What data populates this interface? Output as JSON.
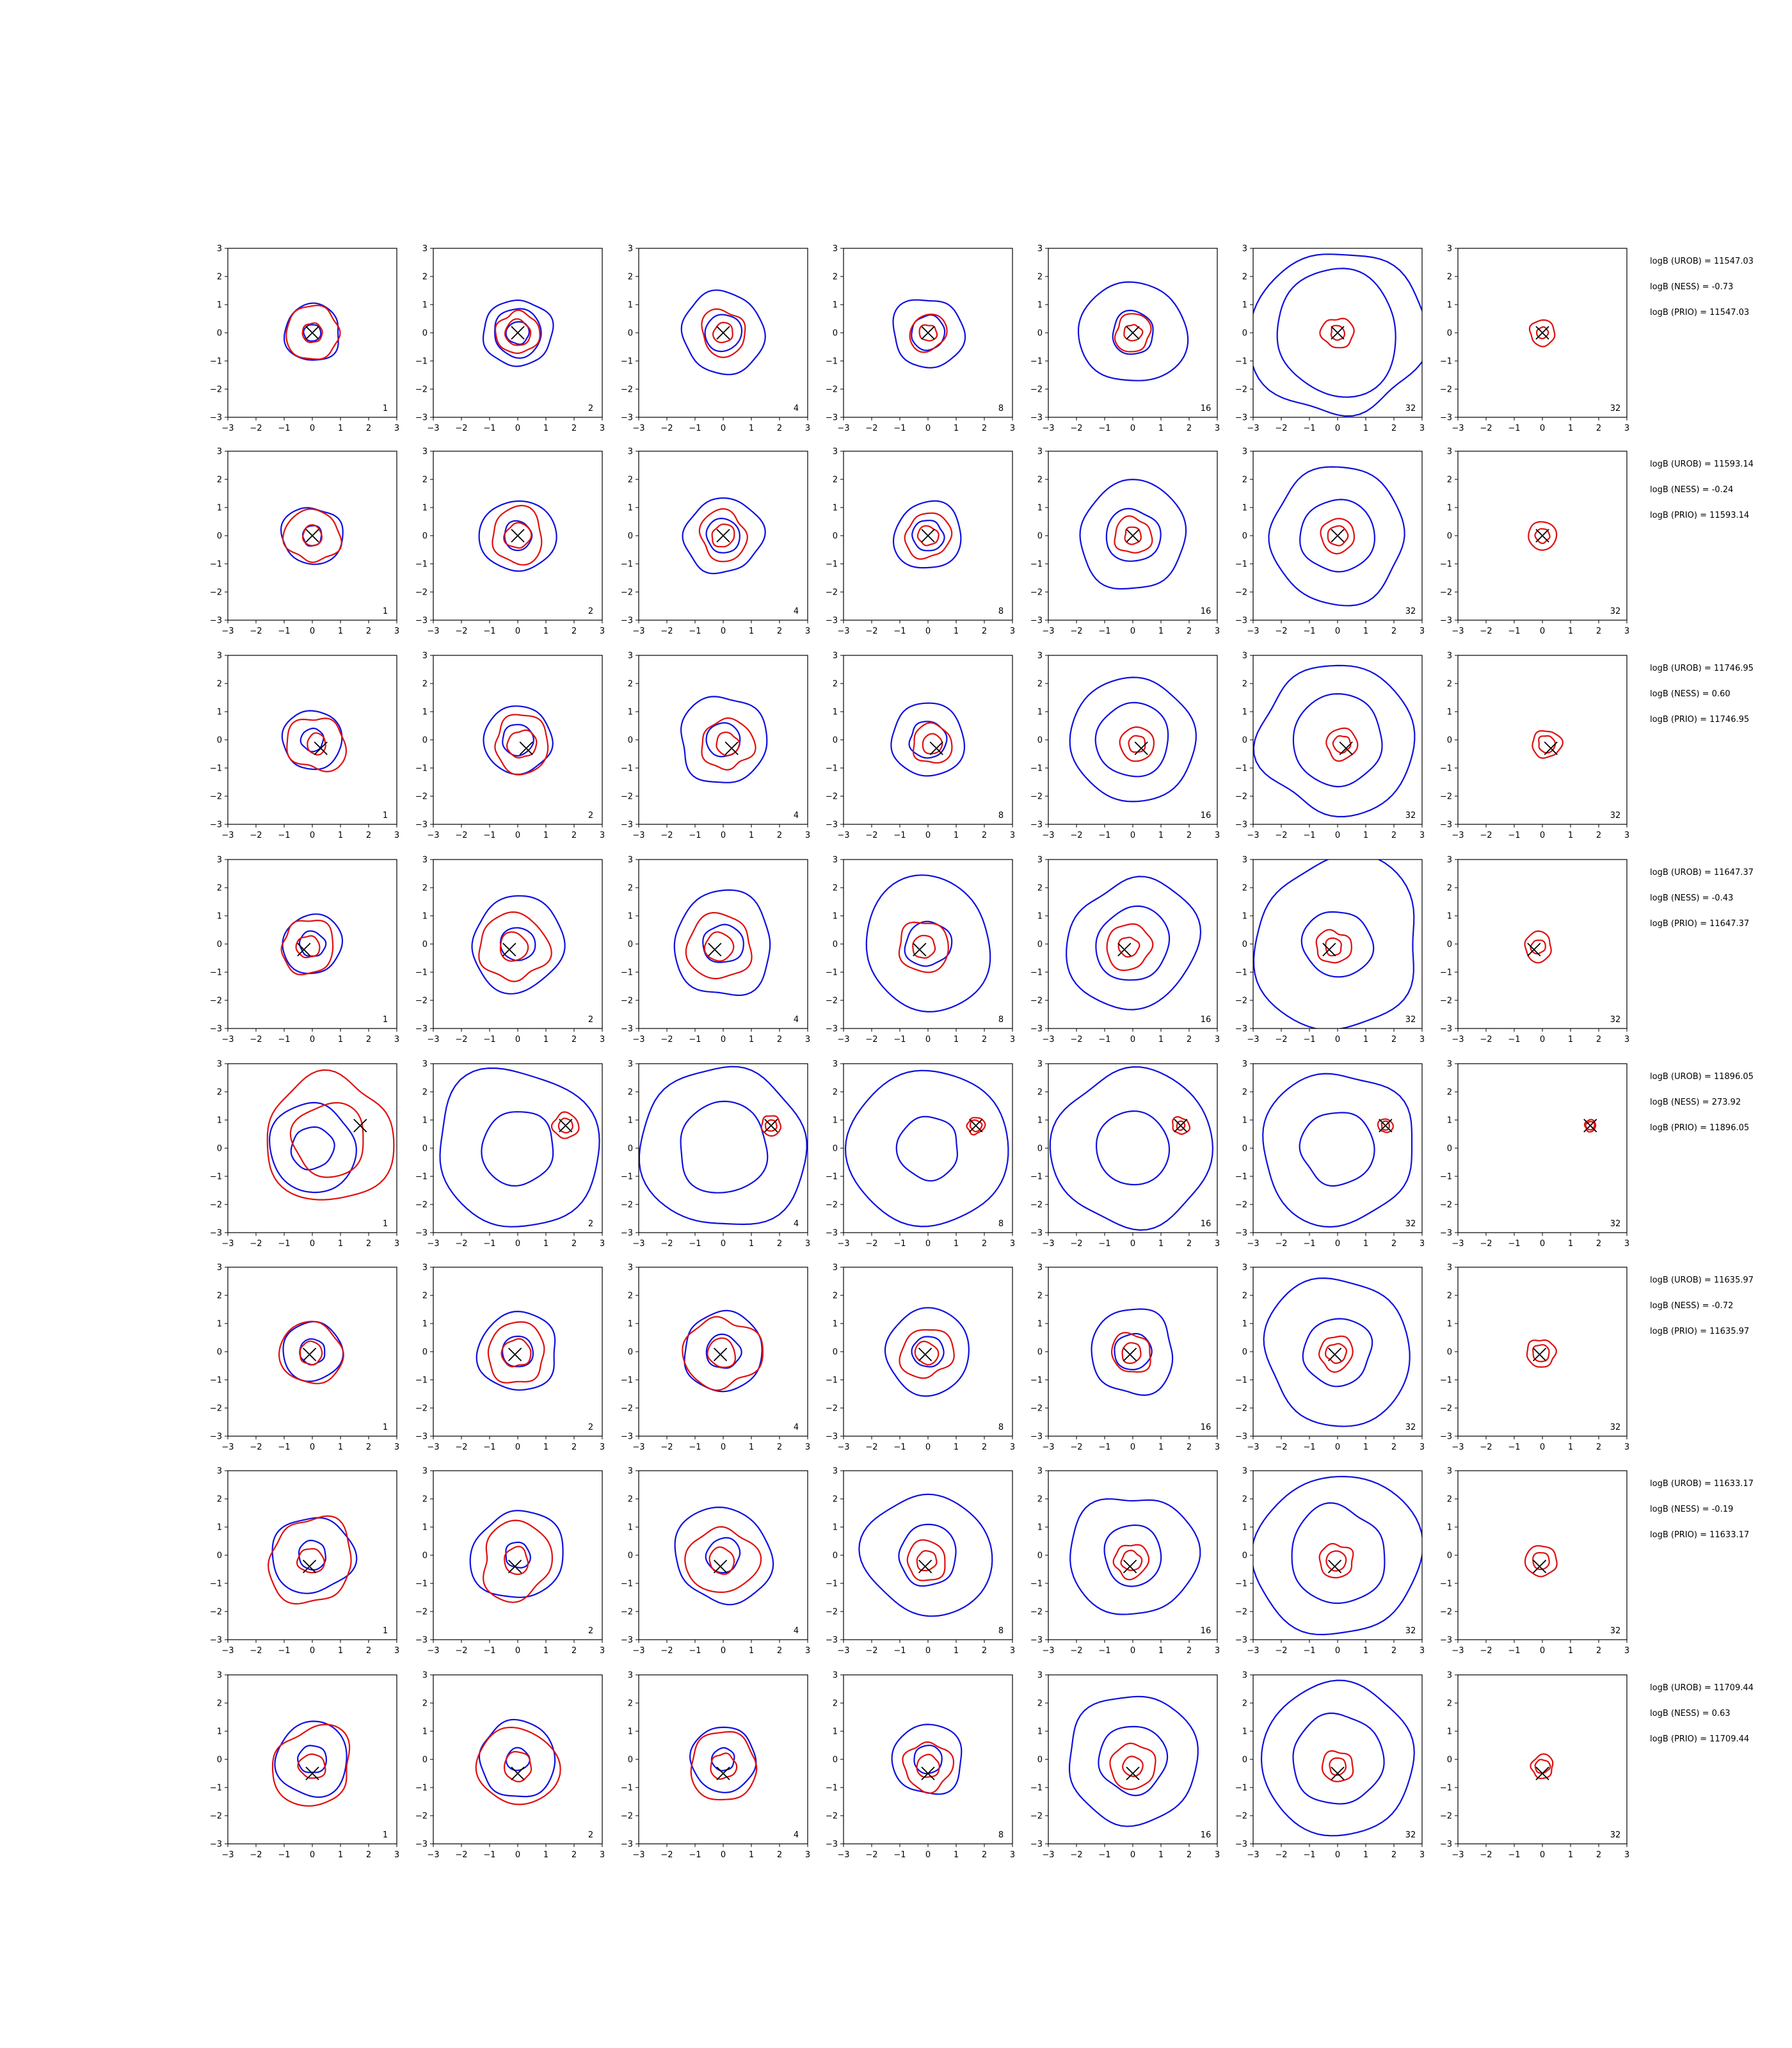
{
  "chart_data": {
    "type": "contour",
    "layout": {
      "rows": 8,
      "cols": 7
    },
    "xlim": [
      -3,
      3
    ],
    "ylim": [
      -3,
      3
    ],
    "ticks": [
      -3,
      -2,
      -1,
      0,
      1,
      2,
      3
    ],
    "tick_labels": [
      "−3",
      "−2",
      "−1",
      "0",
      "1",
      "2",
      "3"
    ],
    "grid": false,
    "legend": "none",
    "col_labels": [
      "1",
      "2",
      "4",
      "8",
      "16",
      "32",
      "32"
    ],
    "colors": {
      "blue": "#1010e0",
      "red": "#e01010",
      "marker": "#000000"
    },
    "rows": [
      {
        "marker": [
          0.0,
          0.0
        ],
        "stats": [
          "logB (UROB) = 11547.03",
          "logB (NESS) = -0.73",
          "logB (PRIO) = 11547.03"
        ],
        "blue": [
          [
            0.3,
            1.0
          ],
          [
            0.4,
            0.85,
            1.2
          ],
          [
            0.65,
            1.45
          ],
          [
            0.6,
            1.25
          ],
          [
            0.75,
            1.85
          ],
          [
            2.2,
            3.0
          ],
          []
        ],
        "red": [
          [
            0.35,
            0.95
          ],
          [
            0.45,
            0.75
          ],
          [
            0.35,
            0.8
          ],
          [
            0.3,
            0.65
          ],
          [
            0.3,
            0.65
          ],
          [
            0.25,
            0.55
          ],
          [
            0.2,
            0.45
          ]
        ]
      },
      {
        "marker": [
          0.0,
          0.0
        ],
        "stats": [
          "logB (UROB) = 11593.14",
          "logB (NESS) = -0.24",
          "logB (PRIO) = 11593.14"
        ],
        "blue": [
          [
            0.35,
            1.05
          ],
          [
            0.5,
            1.3
          ],
          [
            0.6,
            1.35
          ],
          [
            0.55,
            1.2
          ],
          [
            0.95,
            1.9
          ],
          [
            1.3,
            2.4
          ],
          []
        ],
        "red": [
          [
            0.35,
            0.95
          ],
          [
            0.45,
            0.95
          ],
          [
            0.4,
            0.85
          ],
          [
            0.35,
            0.8
          ],
          [
            0.3,
            0.65
          ],
          [
            0.35,
            0.6
          ],
          [
            0.25,
            0.5
          ]
        ]
      },
      {
        "marker": [
          0.3,
          -0.3
        ],
        "stats": [
          "logB (UROB) = 11746.95",
          "logB (NESS) = 0.60",
          "logB (PRIO) = 11746.95"
        ],
        "blue": [
          [
            0.4,
            1.05
          ],
          [
            0.55,
            1.2
          ],
          [
            0.6,
            1.55
          ],
          [
            0.65,
            1.3
          ],
          [
            1.3,
            2.2
          ],
          [
            1.6,
            2.7
          ],
          []
        ],
        "red": [
          [
            0.35,
            1.0
          ],
          [
            0.5,
            1.0
          ],
          [
            0.4,
            0.9
          ],
          [
            0.35,
            0.7
          ],
          [
            0.3,
            0.6
          ],
          [
            0.3,
            0.55
          ],
          [
            0.3,
            0.5
          ]
        ]
      },
      {
        "marker": [
          -0.3,
          -0.2
        ],
        "stats": [
          "logB (UROB) = 11647.37",
          "logB (NESS) = -0.43",
          "logB (PRIO) = 11647.37"
        ],
        "blue": [
          [
            0.45,
            1.05
          ],
          [
            0.6,
            1.65
          ],
          [
            0.7,
            1.8
          ],
          [
            0.8,
            2.3
          ],
          [
            1.3,
            2.3
          ],
          [
            1.2,
            3.0
          ],
          []
        ],
        "red": [
          [
            0.4,
            0.95
          ],
          [
            0.5,
            1.2
          ],
          [
            0.5,
            1.15
          ],
          [
            0.4,
            0.9
          ],
          [
            0.35,
            0.8
          ],
          [
            0.3,
            0.6
          ],
          [
            0.25,
            0.5
          ]
        ]
      },
      {
        "marker": [
          1.7,
          0.8
        ],
        "stats": [
          "logB (UROB) = 11896.05",
          "logB (NESS) = 273.92",
          "logB (PRIO) = 11896.05"
        ],
        "blue": [
          [
            0.75,
            1.55
          ],
          [
            1.3,
            2.85
          ],
          [
            1.6,
            2.9
          ],
          [
            1.1,
            2.8
          ],
          [
            1.3,
            2.8
          ],
          [
            1.3,
            2.7
          ],
          []
        ],
        "red": [
          [
            1.3,
            2.25
          ],
          [
            0.25,
            0.45
          ],
          [
            0.2,
            0.35
          ],
          [
            0.2,
            0.3
          ],
          [
            0.15,
            0.3
          ],
          [
            0.15,
            0.25
          ],
          [
            0.15,
            0.2
          ]
        ]
      },
      {
        "marker": [
          -0.1,
          -0.1
        ],
        "stats": [
          "logB (UROB) = 11635.97",
          "logB (NESS) = -0.72",
          "logB (PRIO) = 11635.97"
        ],
        "blue": [
          [
            0.45,
            1.05
          ],
          [
            0.55,
            1.4
          ],
          [
            0.6,
            1.4
          ],
          [
            0.55,
            1.5
          ],
          [
            0.65,
            1.5
          ],
          [
            1.2,
            2.6
          ],
          []
        ],
        "red": [
          [
            0.4,
            1.1
          ],
          [
            0.5,
            1.05
          ],
          [
            0.5,
            1.3
          ],
          [
            0.4,
            0.9
          ],
          [
            0.35,
            0.7
          ],
          [
            0.35,
            0.6
          ],
          [
            0.3,
            0.5
          ]
        ]
      },
      {
        "marker": [
          -0.1,
          -0.4
        ],
        "stats": [
          "logB (UROB) = 11633.17",
          "logB (NESS) = -0.19",
          "logB (PRIO) = 11633.17"
        ],
        "blue": [
          [
            0.5,
            1.4
          ],
          [
            0.45,
            1.6
          ],
          [
            0.6,
            1.7
          ],
          [
            1.05,
            2.2
          ],
          [
            1.05,
            2.2
          ],
          [
            1.7,
            2.9
          ],
          []
        ],
        "red": [
          [
            0.45,
            1.5
          ],
          [
            0.45,
            1.3
          ],
          [
            0.45,
            1.2
          ],
          [
            0.35,
            0.7
          ],
          [
            0.35,
            0.6
          ],
          [
            0.35,
            0.6
          ],
          [
            0.3,
            0.55
          ]
        ]
      },
      {
        "marker": [
          0.0,
          -0.5
        ],
        "stats": [
          "logB (UROB) = 11709.44",
          "logB (NESS) = 0.63",
          "logB (PRIO) = 11709.44"
        ],
        "blue": [
          [
            0.5,
            1.3
          ],
          [
            0.4,
            1.35
          ],
          [
            0.4,
            1.15
          ],
          [
            0.5,
            1.25
          ],
          [
            1.2,
            2.3
          ],
          [
            1.6,
            2.7
          ],
          []
        ],
        "red": [
          [
            0.45,
            1.4
          ],
          [
            0.5,
            1.4
          ],
          [
            0.45,
            1.2
          ],
          [
            0.4,
            0.85
          ],
          [
            0.35,
            0.8
          ],
          [
            0.3,
            0.55
          ],
          [
            0.25,
            0.4
          ]
        ]
      }
    ]
  }
}
